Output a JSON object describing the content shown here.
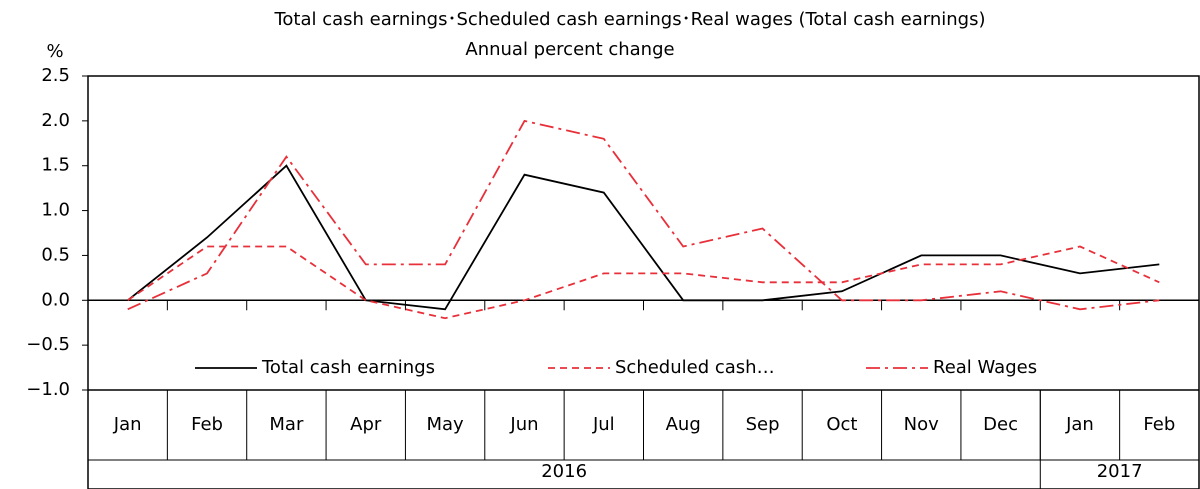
{
  "chart_data": {
    "type": "line",
    "title": "Total cash earnings･Scheduled cash earnings･Real wages (Total cash earnings)",
    "subtitle": "Annual percent change",
    "y_label": "%",
    "categories": [
      "Jan",
      "Feb",
      "Mar",
      "Apr",
      "May",
      "Jun",
      "Jul",
      "Aug",
      "Sep",
      "Oct",
      "Nov",
      "Dec",
      "Jan",
      "Feb"
    ],
    "x_groups": [
      {
        "label": "2016",
        "count": 12
      },
      {
        "label": "2017",
        "count": 2
      }
    ],
    "series": [
      {
        "name": "Total cash earnings",
        "color": "#000000",
        "dash": "solid",
        "values": [
          0.0,
          0.7,
          1.5,
          0.0,
          -0.1,
          1.4,
          1.2,
          0.0,
          0.0,
          0.1,
          0.5,
          0.5,
          0.3,
          0.4
        ]
      },
      {
        "name": "Scheduled cash…",
        "color": "#e8303a",
        "dash": "dashed",
        "values": [
          0.0,
          0.6,
          0.6,
          0.0,
          -0.2,
          0.0,
          0.3,
          0.3,
          0.2,
          0.2,
          0.4,
          0.4,
          0.6,
          0.2
        ]
      },
      {
        "name": "Real Wages",
        "color": "#e8303a",
        "dash": "dashdot",
        "values": [
          -0.1,
          0.3,
          1.6,
          0.4,
          0.4,
          2.0,
          1.8,
          0.6,
          0.8,
          0.0,
          0.0,
          0.1,
          -0.1,
          0.0
        ]
      }
    ],
    "ylim": [
      -1.0,
      2.5
    ],
    "yticks": [
      {
        "value": -1,
        "label": "−1.0"
      },
      {
        "value": -0.5,
        "label": "−0.5"
      },
      {
        "value": 0,
        "label": "0.0"
      },
      0.5,
      {
        "value": 1,
        "label": "1.0"
      },
      1.5,
      {
        "value": 2,
        "label": "2.0"
      },
      2.5
    ],
    "grid": false,
    "legend": "bottom"
  }
}
